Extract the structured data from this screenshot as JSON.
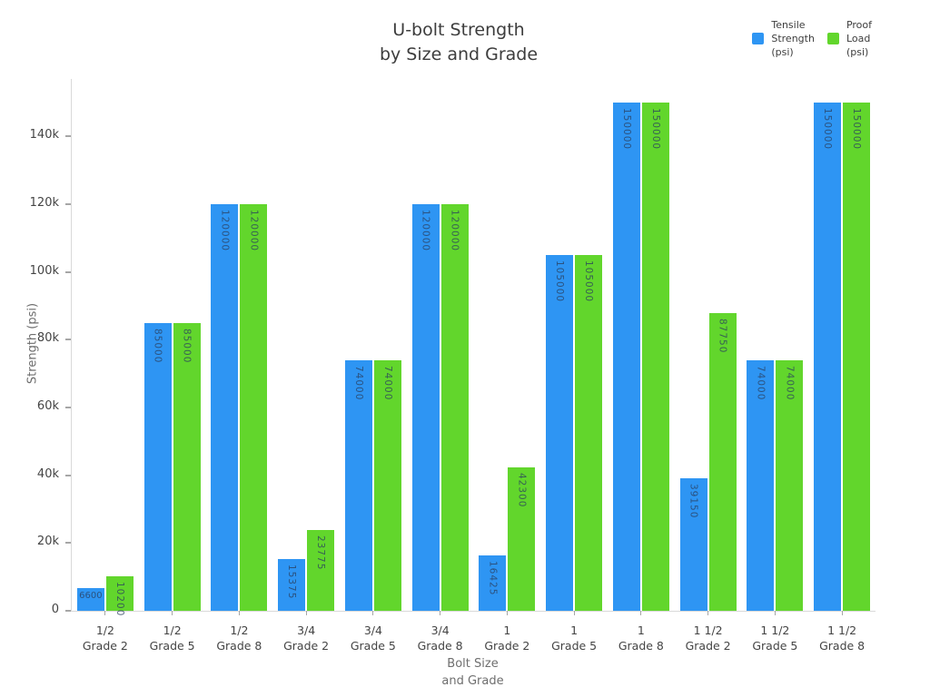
{
  "chart_data": {
    "type": "bar",
    "title_lines": [
      "U-bolt Strength",
      "by Size and Grade"
    ],
    "title": "U-bolt Strength by Size and Grade",
    "xlabel_lines": [
      "Bolt Size",
      "and Grade"
    ],
    "xlabel": "Bolt Size and Grade",
    "ylabel": "Strength (psi)",
    "ylim": [
      0,
      157000
    ],
    "grid": false,
    "legend_position": "top-right",
    "bar_label_color": "#2a3f5f",
    "axis_line_color": "#d9d9d9",
    "tick_color": "#a6a6a6",
    "yticks": [
      {
        "value": 0,
        "label": "0"
      },
      {
        "value": 20000,
        "label": "20k"
      },
      {
        "value": 40000,
        "label": "40k"
      },
      {
        "value": 60000,
        "label": "60k"
      },
      {
        "value": 80000,
        "label": "80k"
      },
      {
        "value": 100000,
        "label": "100k"
      },
      {
        "value": 120000,
        "label": "120k"
      },
      {
        "value": 140000,
        "label": "140k"
      }
    ],
    "categories": [
      [
        "1/2",
        "Grade 2"
      ],
      [
        "1/2",
        "Grade 5"
      ],
      [
        "1/2",
        "Grade 8"
      ],
      [
        "3/4",
        "Grade 2"
      ],
      [
        "3/4",
        "Grade 5"
      ],
      [
        "3/4",
        "Grade 8"
      ],
      [
        "1",
        "Grade 2"
      ],
      [
        "1",
        "Grade 5"
      ],
      [
        "1",
        "Grade 8"
      ],
      [
        "1 1/2",
        "Grade 2"
      ],
      [
        "1 1/2",
        "Grade 5"
      ],
      [
        "1 1/2",
        "Grade 8"
      ]
    ],
    "series": [
      {
        "name": "Tensile Strength (psi)",
        "legend_lines": [
          "Tensile",
          "Strength",
          "(psi)"
        ],
        "color": "#2e95f3",
        "values": [
          6600,
          85000,
          120000,
          15375,
          74000,
          120000,
          16425,
          105000,
          150000,
          39150,
          74000,
          150000
        ]
      },
      {
        "name": "Proof Load (psi)",
        "legend_lines": [
          "Proof",
          "Load",
          "(psi)"
        ],
        "color": "#62d62c",
        "values": [
          10200,
          85000,
          120000,
          23775,
          74000,
          120000,
          42300,
          105000,
          150000,
          87750,
          74000,
          150000
        ]
      }
    ]
  }
}
